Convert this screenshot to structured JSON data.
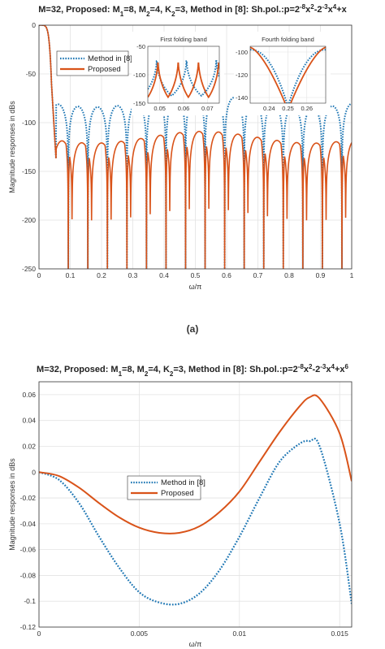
{
  "chart_data": [
    {
      "type": "line",
      "title_parts": [
        {
          "t": "M=32, Proposed: M"
        },
        {
          "t": "1",
          "sub": true
        },
        {
          "t": "=8, M"
        },
        {
          "t": "2",
          "sub": true
        },
        {
          "t": "=4, K"
        },
        {
          "t": "2",
          "sub": true
        },
        {
          "t": "=3, Method in [8]: Sh.pol.:p=2"
        },
        {
          "t": "-8",
          "sup": true
        },
        {
          "t": "x"
        },
        {
          "t": "2",
          "sup": true
        },
        {
          "t": "-2"
        },
        {
          "t": "-3",
          "sup": true
        },
        {
          "t": "x"
        },
        {
          "t": "4",
          "sup": true
        },
        {
          "t": "+x"
        }
      ],
      "xlabel": "ω/π",
      "ylabel": "Magnitude responses in dBs",
      "xlim": [
        0,
        1
      ],
      "ylim": [
        -250,
        0
      ],
      "xticks": [
        "0",
        "0.1",
        "0.2",
        "0.3",
        "0.4",
        "0.5",
        "0.6",
        "0.7",
        "0.8",
        "0.9",
        "1"
      ],
      "yticks": [
        "0",
        "-50",
        "-100",
        "-150",
        "-200",
        "-250"
      ],
      "grid": true,
      "legend": {
        "placement": "top-left",
        "entries": [
          "Method in [8]",
          "Proposed"
        ]
      },
      "series": [
        {
          "name": "Method in [8]",
          "color": "#1f77b4",
          "style": "dotted",
          "passband_edge": 0.04,
          "null_spacing": 0.0625,
          "peak_level": -78,
          "null_depth": -250
        },
        {
          "name": "Proposed",
          "color": "#d95319",
          "style": "solid",
          "passband_edge": 0.04,
          "null_spacing": 0.0625,
          "peak_level": -95,
          "null_depth": -250
        }
      ],
      "insets": [
        {
          "title": "First folding band",
          "xlim": [
            0.045,
            0.075
          ],
          "ylim": [
            -150,
            -50
          ],
          "xticks": [
            "0.05",
            "0.06",
            "0.07"
          ],
          "yticks": [
            "-50",
            "-100",
            "-150"
          ]
        },
        {
          "title": "Fourth folding band",
          "xlim": [
            0.23,
            0.27
          ],
          "ylim": [
            -145,
            -95
          ],
          "xticks": [
            "0.24",
            "0.25",
            "0.26"
          ],
          "yticks": [
            "-100",
            "-120",
            "-140"
          ]
        }
      ]
    },
    {
      "type": "line",
      "title_parts": [
        {
          "t": "M=32, Proposed: M"
        },
        {
          "t": "1",
          "sub": true
        },
        {
          "t": "=8, M"
        },
        {
          "t": "2",
          "sub": true
        },
        {
          "t": "=4, K"
        },
        {
          "t": "2",
          "sub": true
        },
        {
          "t": "=3, Method in [8]: Sh.pol.:p=2"
        },
        {
          "t": "-8",
          "sup": true
        },
        {
          "t": "x"
        },
        {
          "t": "2",
          "sup": true
        },
        {
          "t": "-2"
        },
        {
          "t": "-3",
          "sup": true
        },
        {
          "t": "x"
        },
        {
          "t": "4",
          "sup": true
        },
        {
          "t": "+x"
        },
        {
          "t": "6",
          "sup": true
        }
      ],
      "xlabel": "ω/π",
      "ylabel": "Magnitude responses in dBs",
      "xlim": [
        0,
        0.0156
      ],
      "ylim": [
        -0.12,
        0.07
      ],
      "xticks": [
        "0",
        "0.005",
        "0.01",
        "0.015"
      ],
      "xtick_values": [
        0,
        0.005,
        0.01,
        0.015
      ],
      "yticks": [
        "0.06",
        "0.04",
        "0.02",
        "0",
        "-0.02",
        "-0.04",
        "-0.06",
        "-0.08",
        "-0.1",
        "-0.12"
      ],
      "ytick_values": [
        0.06,
        0.04,
        0.02,
        0,
        -0.02,
        -0.04,
        -0.06,
        -0.08,
        -0.1,
        -0.12
      ],
      "grid": true,
      "legend": {
        "placement": "center",
        "entries": [
          "Method in [8]",
          "Proposed"
        ]
      },
      "series": [
        {
          "name": "Method in [8]",
          "color": "#1f77b4",
          "style": "dotted",
          "x": [
            0,
            0.001,
            0.002,
            0.003,
            0.004,
            0.005,
            0.006,
            0.007,
            0.008,
            0.009,
            0.01,
            0.011,
            0.012,
            0.013,
            0.0135,
            0.014,
            0.015,
            0.0156
          ],
          "y": [
            0,
            -0.006,
            -0.024,
            -0.05,
            -0.074,
            -0.093,
            -0.101,
            -0.102,
            -0.094,
            -0.076,
            -0.05,
            -0.02,
            0.008,
            0.022,
            0.024,
            0.02,
            -0.04,
            -0.102
          ]
        },
        {
          "name": "Proposed",
          "color": "#d95319",
          "style": "solid",
          "x": [
            0,
            0.001,
            0.002,
            0.003,
            0.004,
            0.005,
            0.006,
            0.007,
            0.008,
            0.009,
            0.01,
            0.011,
            0.012,
            0.013,
            0.0135,
            0.014,
            0.015,
            0.0156
          ],
          "y": [
            0,
            -0.003,
            -0.012,
            -0.024,
            -0.035,
            -0.043,
            -0.047,
            -0.047,
            -0.042,
            -0.031,
            -0.015,
            0.008,
            0.031,
            0.051,
            0.058,
            0.057,
            0.03,
            -0.007
          ]
        }
      ]
    }
  ],
  "caption_a": "(a)"
}
